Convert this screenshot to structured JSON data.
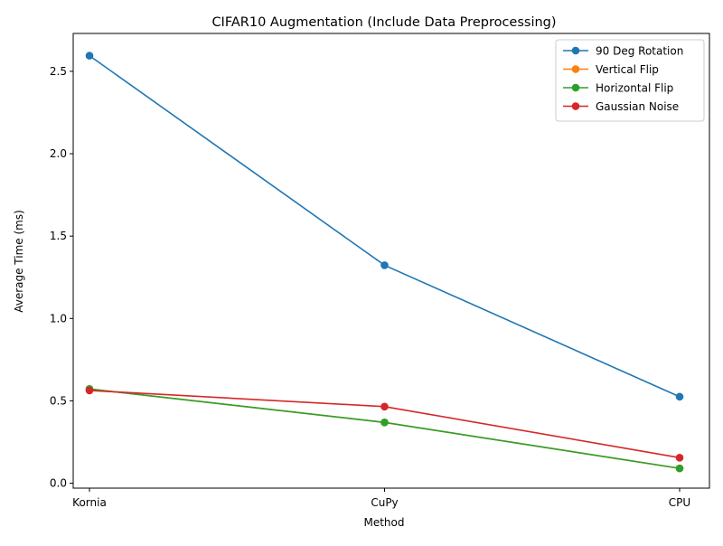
{
  "chart_data": {
    "type": "line",
    "title": "CIFAR10 Augmentation (Include Data Preprocessing)",
    "xlabel": "Method",
    "ylabel": "Average Time (ms)",
    "categories": [
      "Kornia",
      "CuPy",
      "CPU"
    ],
    "ylim": [
      -0.03,
      2.73
    ],
    "yticks": [
      0.0,
      0.5,
      1.0,
      1.5,
      2.0,
      2.5
    ],
    "ytick_labels": [
      "0.0",
      "0.5",
      "1.0",
      "1.5",
      "2.0",
      "2.5"
    ],
    "grid": false,
    "legend_position": "top-right",
    "series": [
      {
        "name": "90 Deg Rotation",
        "color": "#1f77b4",
        "values": [
          2.595,
          1.323,
          0.525
        ]
      },
      {
        "name": "Vertical Flip",
        "color": "#ff7f0e",
        "values": [
          0.572,
          0.369,
          0.09
        ]
      },
      {
        "name": "Horizontal Flip",
        "color": "#2ca02c",
        "values": [
          0.572,
          0.369,
          0.09
        ]
      },
      {
        "name": "Gaussian Noise",
        "color": "#d62728",
        "values": [
          0.563,
          0.465,
          0.155
        ]
      }
    ]
  }
}
